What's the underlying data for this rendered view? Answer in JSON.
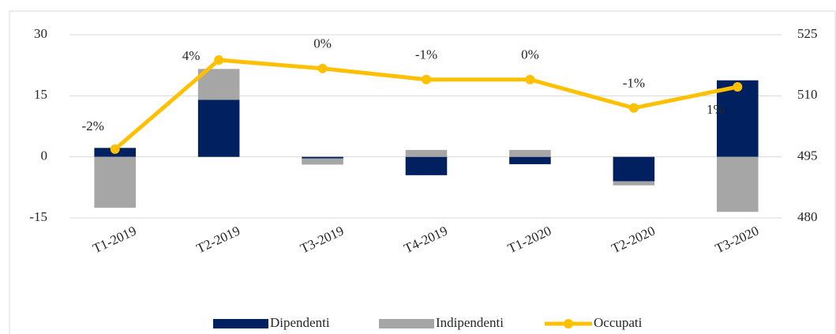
{
  "chart_data": {
    "type": "bar-line",
    "categories": [
      "T1-2019",
      "T2-2019",
      "T3-2019",
      "T4-2019",
      "T1-2020",
      "T2-2020",
      "T3-2020"
    ],
    "series": [
      {
        "name": "Dipendenti",
        "type": "bar",
        "color": "#002060",
        "values": [
          2.2,
          14,
          -0.4,
          -4.5,
          -1.8,
          -6,
          18.8
        ]
      },
      {
        "name": "Indipendenti",
        "type": "bar",
        "color": "#a6a6a6",
        "values": [
          -12.5,
          7.6,
          -1.5,
          1.7,
          1.7,
          -1,
          -13.5
        ]
      },
      {
        "name": "Occupati",
        "type": "line",
        "axis": "y2",
        "color": "#ffc000",
        "values": [
          496.9,
          518.8,
          516.7,
          514,
          514,
          507,
          512.2
        ]
      }
    ],
    "annotations": [
      "-2%",
      "4%",
      "0%",
      "-1%",
      "0%",
      "-1%",
      "1%"
    ],
    "ylim": [
      -15,
      30
    ],
    "yticks": [
      -15,
      0,
      15,
      30
    ],
    "y2lim": [
      480,
      525
    ],
    "y2ticks": [
      480,
      495,
      510,
      525
    ],
    "grid": true,
    "legend": "bottom",
    "stacked": true
  }
}
